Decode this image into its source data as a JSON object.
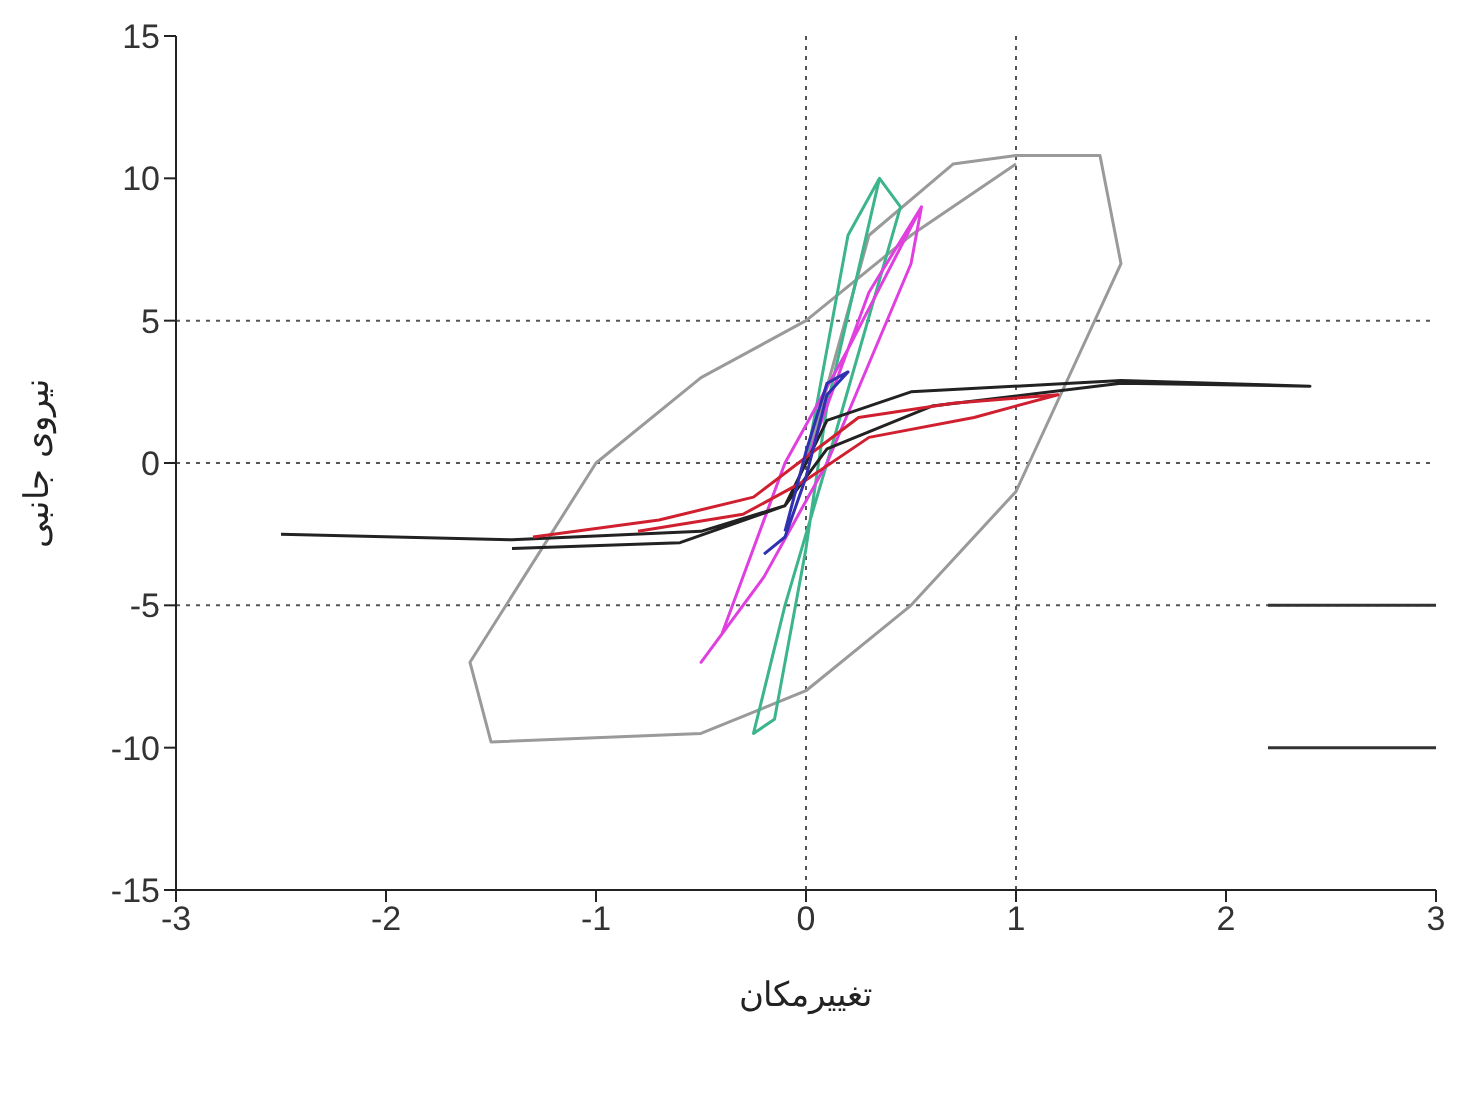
{
  "chart_data": {
    "type": "line",
    "xlabel": "تغییرمکان",
    "ylabel": "نیروی جانبی",
    "xlim": [
      -3,
      3
    ],
    "xticks": [
      -3,
      -2,
      -1,
      0,
      1,
      2,
      3
    ],
    "ylim": [
      -15,
      15
    ],
    "yticks": [
      -15,
      -10,
      -5,
      0,
      5,
      10,
      15
    ],
    "grid": false,
    "marker": "none",
    "line_style": "solid",
    "ref_lines": [
      {
        "axis": "x",
        "value": 0,
        "color": "#555555",
        "line_style": "dotted"
      },
      {
        "axis": "x",
        "value": 1,
        "color": "#555555",
        "line_style": "dotted"
      },
      {
        "axis": "y",
        "value": 5,
        "color": "#555555",
        "line_style": "dotted"
      },
      {
        "axis": "y",
        "value": 0,
        "color": "#555555",
        "line_style": "dotted"
      },
      {
        "axis": "y",
        "value": -5,
        "color": "#555555",
        "line_style": "dotted"
      }
    ],
    "series": [
      {
        "color": "#9a9a9a",
        "x": [
          0,
          0.3,
          0.7,
          1.0,
          1.4,
          1.5,
          1.0,
          0.5,
          0,
          -0.5,
          -1.5,
          -1.6,
          -1.0,
          -0.5,
          0,
          0.5,
          1.0
        ],
        "values": [
          0,
          8,
          10.5,
          10.8,
          10.8,
          7,
          -1,
          -5,
          -8,
          -9.5,
          -9.8,
          -7,
          0,
          3,
          5,
          8,
          10.5
        ]
      },
      {
        "color": "#3cb48c",
        "x": [
          0,
          0.2,
          0.35,
          0.45,
          0.1,
          -0.1,
          -0.25,
          -0.15,
          0,
          0.1,
          0.35
        ],
        "values": [
          0,
          8,
          10,
          9,
          0,
          -5,
          -9.5,
          -9,
          -3,
          2,
          10
        ]
      },
      {
        "color": "#e040e0",
        "x": [
          0,
          0.3,
          0.55,
          0.5,
          0.1,
          -0.2,
          -0.5,
          -0.4,
          -0.1,
          0.2,
          0.55
        ],
        "values": [
          0,
          6,
          9,
          7,
          0,
          -4,
          -7,
          -6,
          0,
          4,
          9
        ]
      },
      {
        "color": "#222222",
        "x": [
          -2.5,
          -1.4,
          -0.5,
          -0.1,
          0.1,
          0.5,
          1.5,
          2.4,
          1.5,
          0.6,
          0.1,
          -0.1,
          -0.6,
          -1.4
        ],
        "values": [
          -2.5,
          -2.7,
          -2.4,
          -1.5,
          1.5,
          2.5,
          2.9,
          2.7,
          2.8,
          2.0,
          0.5,
          -1.5,
          -2.8,
          -3.0
        ]
      },
      {
        "color": "#d02030",
        "x": [
          -1.3,
          -0.7,
          -0.25,
          0,
          0.25,
          0.7,
          1.2,
          0.8,
          0.3,
          0,
          -0.3,
          -0.8
        ],
        "values": [
          -2.6,
          -2.0,
          -1.2,
          0.2,
          1.6,
          2.1,
          2.4,
          1.6,
          0.9,
          -0.6,
          -1.8,
          -2.4
        ]
      },
      {
        "color": "#3030b0",
        "x": [
          -0.2,
          -0.1,
          0,
          0.1,
          0.2,
          0.1,
          0,
          -0.1
        ],
        "values": [
          -3.2,
          -2.6,
          -0.5,
          2.4,
          3.2,
          2.8,
          0.4,
          -2.4
        ]
      },
      {
        "color": "#333333",
        "x": [
          2.2,
          3
        ],
        "values": [
          -5,
          -5
        ]
      },
      {
        "color": "#333333",
        "x": [
          2.2,
          3
        ],
        "values": [
          -10,
          -10
        ]
      }
    ]
  }
}
